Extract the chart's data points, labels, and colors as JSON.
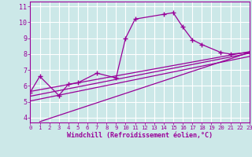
{
  "background_color": "#cce8e8",
  "grid_color": "#ffffff",
  "line_color": "#990099",
  "xlabel": "Windchill (Refroidissement éolien,°C)",
  "ylabel_ticks": [
    4,
    5,
    6,
    7,
    8,
    9,
    10,
    11
  ],
  "xlabel_ticks": [
    0,
    1,
    2,
    3,
    4,
    5,
    6,
    7,
    8,
    9,
    10,
    11,
    12,
    13,
    14,
    15,
    16,
    17,
    18,
    19,
    20,
    21,
    22,
    23
  ],
  "xlim": [
    0,
    23
  ],
  "ylim": [
    3.7,
    11.3
  ],
  "main_line": {
    "x": [
      0,
      1,
      3,
      4,
      5,
      7,
      9,
      10,
      11,
      14,
      15,
      16,
      17,
      18,
      20,
      21,
      23
    ],
    "y": [
      5.6,
      6.6,
      5.4,
      6.1,
      6.2,
      6.8,
      6.5,
      9.0,
      10.2,
      10.5,
      10.6,
      9.7,
      8.9,
      8.6,
      8.1,
      8.0,
      8.1
    ]
  },
  "diag_lines": [
    {
      "x": [
        0,
        23
      ],
      "y": [
        5.65,
        8.15
      ]
    },
    {
      "x": [
        0,
        23
      ],
      "y": [
        5.35,
        8.05
      ]
    },
    {
      "x": [
        0,
        23
      ],
      "y": [
        5.05,
        7.85
      ]
    },
    {
      "x": [
        1,
        23
      ],
      "y": [
        3.75,
        8.1
      ]
    }
  ]
}
